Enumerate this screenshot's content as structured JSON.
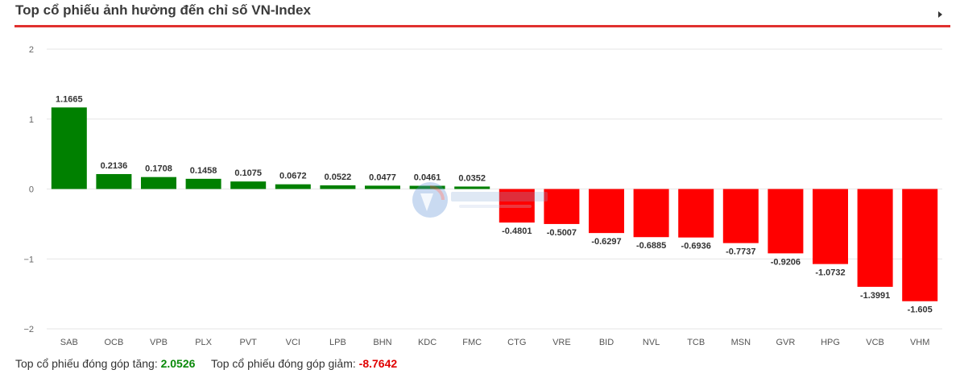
{
  "header": {
    "title": "Top cổ phiếu ảnh hưởng đến chỉ số VN-Index"
  },
  "chart_data": {
    "type": "bar",
    "title": "Top cổ phiếu ảnh hưởng đến chỉ số VN-Index",
    "xlabel": "",
    "ylabel": "",
    "ylim": [
      -2,
      2
    ],
    "yticks": [
      2,
      1,
      0,
      -1,
      -2
    ],
    "grid": true,
    "categories": [
      "SAB",
      "OCB",
      "VPB",
      "PLX",
      "PVT",
      "VCI",
      "LPB",
      "BHN",
      "KDC",
      "FMC",
      "CTG",
      "VRE",
      "BID",
      "NVL",
      "TCB",
      "MSN",
      "GVR",
      "HPG",
      "VCB",
      "VHM"
    ],
    "values": [
      1.1665,
      0.2136,
      0.1708,
      0.1458,
      0.1075,
      0.0672,
      0.0522,
      0.0477,
      0.0461,
      0.0352,
      -0.4801,
      -0.5007,
      -0.6297,
      -0.6885,
      -0.6936,
      -0.7737,
      -0.9206,
      -1.0732,
      -1.3991,
      -1.605
    ],
    "value_labels": [
      "1.1665",
      "0.2136",
      "0.1708",
      "0.1458",
      "0.1075",
      "0.0672",
      "0.0522",
      "0.0477",
      "0.0461",
      "0.0352",
      "-0.4801",
      "-0.5007",
      "-0.6297",
      "-0.6885",
      "-0.6936",
      "-0.7737",
      "-0.9206",
      "-1.0732",
      "-1.3991",
      "-1.605"
    ],
    "colors": {
      "positive": "#008000",
      "negative": "#ff0000",
      "grid": "#e6e6e6"
    }
  },
  "footer": {
    "increase_label": "Top cổ phiếu đóng góp tăng:",
    "increase_value": "2.0526",
    "decrease_label": "Top cổ phiếu đóng góp giảm:",
    "decrease_value": "-8.7642"
  },
  "icons": {
    "expand": "arrow-right-icon",
    "watermark": "vietstock-logo"
  }
}
